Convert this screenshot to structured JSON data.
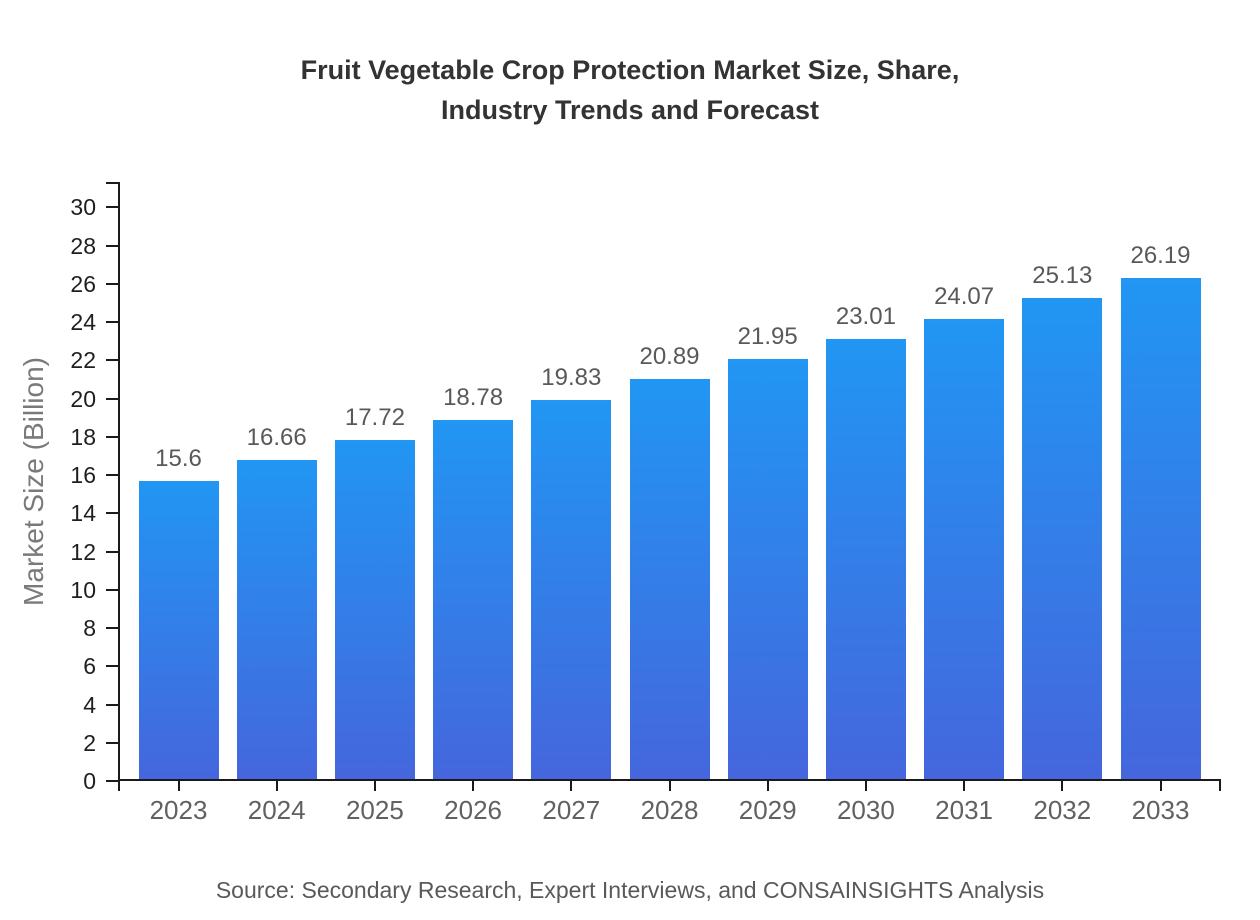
{
  "chart_data": {
    "type": "bar",
    "title_lines": [
      "Fruit Vegetable Crop Protection Market Size, Share,",
      "Industry Trends and Forecast"
    ],
    "categories": [
      "2023",
      "2024",
      "2025",
      "2026",
      "2027",
      "2028",
      "2029",
      "2030",
      "2031",
      "2032",
      "2033"
    ],
    "values": [
      15.6,
      16.66,
      17.72,
      18.78,
      19.83,
      20.89,
      21.95,
      23.01,
      24.07,
      25.13,
      26.19
    ],
    "value_labels": [
      "15.6",
      "16.66",
      "17.72",
      "18.78",
      "19.83",
      "20.89",
      "21.95",
      "23.01",
      "24.07",
      "25.13",
      "26.19"
    ],
    "xlabel": "",
    "ylabel": "Market Size (Billion)",
    "ylim": [
      0,
      30
    ],
    "ytick_step": 2,
    "grid": false,
    "legend": "none",
    "source_note": "Source: Secondary Research, Expert Interviews, and CONSAINSIGHTS Analysis",
    "colors": {
      "bar_gradient_top": "#2196F3",
      "bar_gradient_bottom": "#4566DD",
      "axis": "#1a1a1a",
      "title_text": "#333333",
      "y_tick_text": "#1f1f1f",
      "x_tick_text": "#616161",
      "value_label_text": "#595959",
      "axis_title_text": "#7a7a7a",
      "source_text": "#595959"
    }
  }
}
